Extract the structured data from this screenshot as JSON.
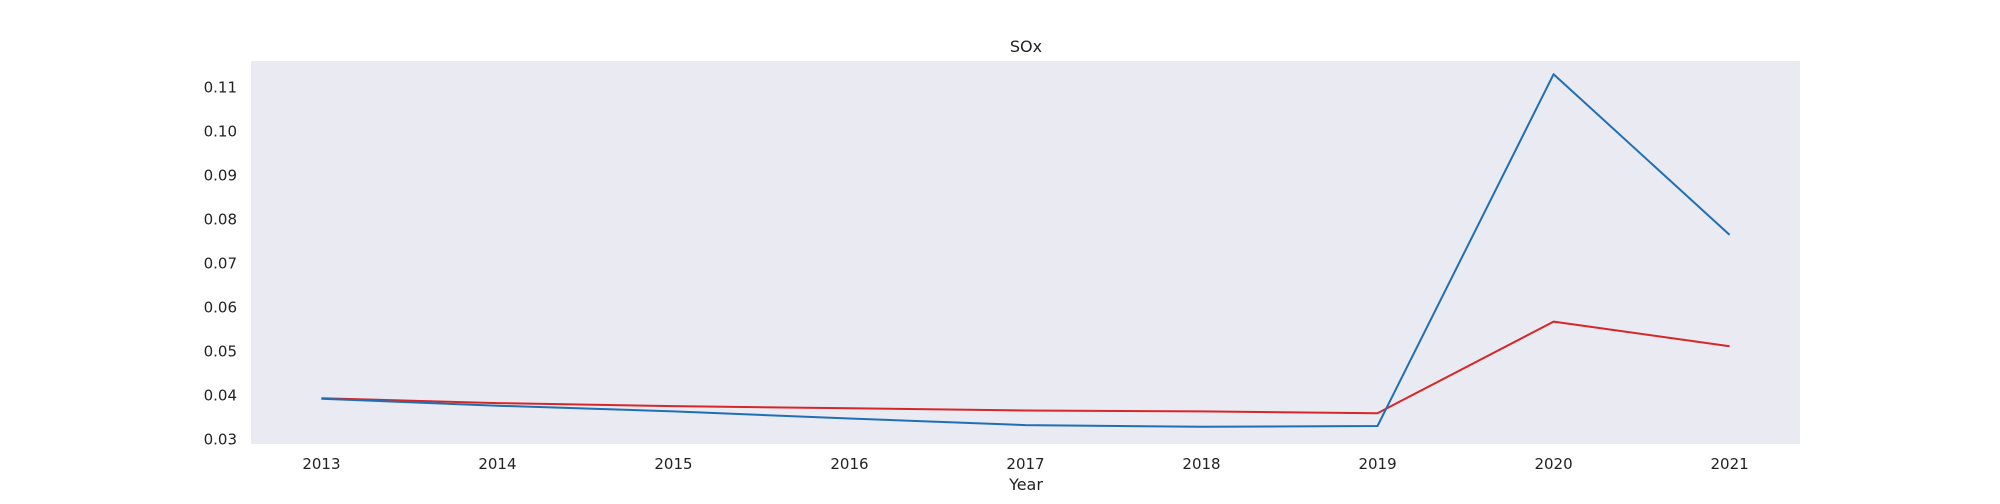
{
  "chart_data": {
    "type": "line",
    "title": "SOx",
    "xlabel": "Year",
    "ylabel": "",
    "x": [
      2013,
      2014,
      2015,
      2016,
      2017,
      2018,
      2019,
      2020,
      2021
    ],
    "xlim": [
      2012.6,
      2021.4
    ],
    "ylim": [
      0.029,
      0.116
    ],
    "yticks": [
      0.03,
      0.04,
      0.05,
      0.06,
      0.07,
      0.08,
      0.09,
      0.1,
      0.11
    ],
    "ytick_labels": [
      "0.03",
      "0.04",
      "0.05",
      "0.06",
      "0.07",
      "0.08",
      "0.09",
      "0.10",
      "0.11"
    ],
    "xtick_labels": [
      "2013",
      "2014",
      "2015",
      "2016",
      "2017",
      "2018",
      "2019",
      "2020",
      "2021"
    ],
    "grid": false,
    "background": "#eaeaf2",
    "series": [
      {
        "color": "#d62728",
        "values": [
          0.0394,
          0.0383,
          0.0376,
          0.0371,
          0.0366,
          0.0364,
          0.036,
          0.0568,
          0.0512
        ]
      },
      {
        "color": "#1f6fb4",
        "values": [
          0.0393,
          0.0377,
          0.0364,
          0.0348,
          0.0333,
          0.0329,
          0.0331,
          0.113,
          0.0765
        ]
      }
    ]
  }
}
